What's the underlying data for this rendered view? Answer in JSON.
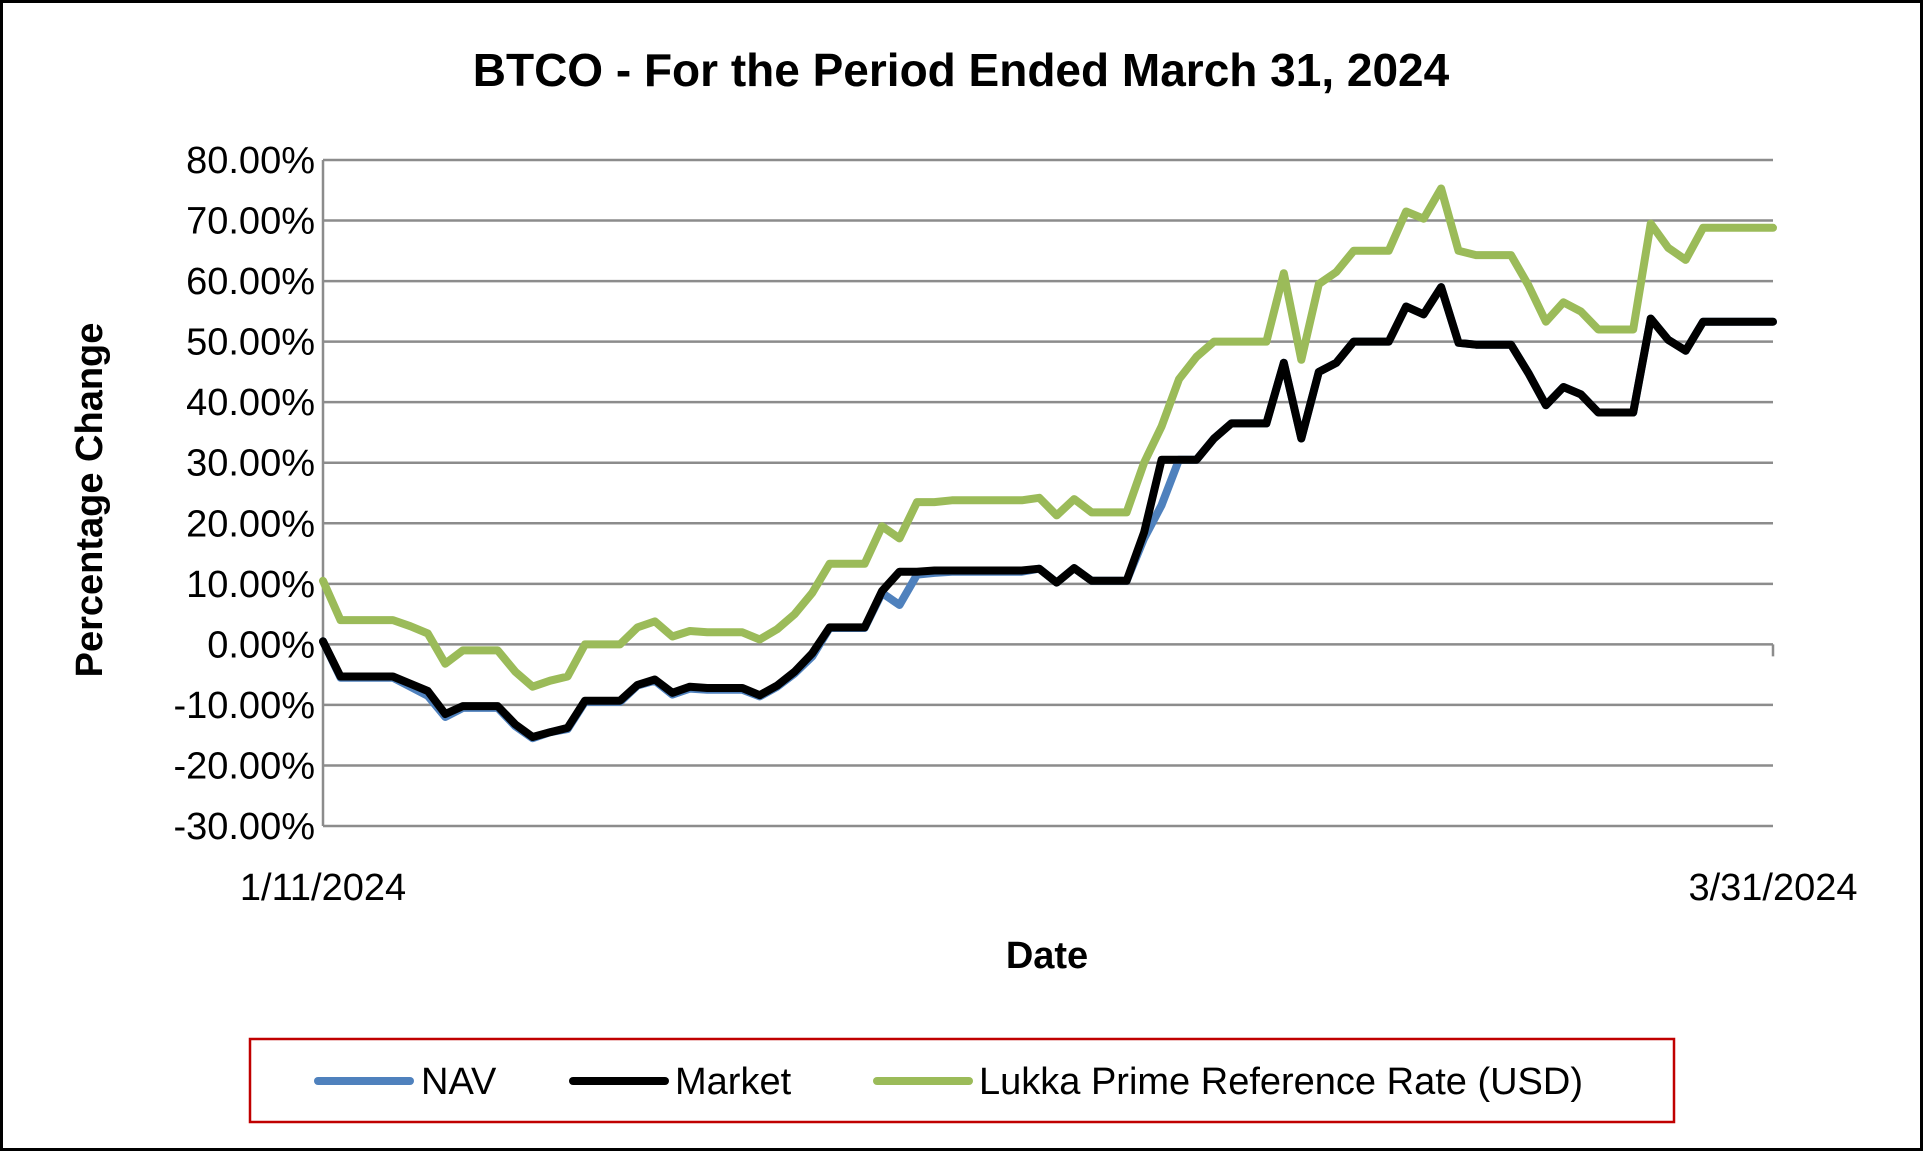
{
  "chart_data": {
    "type": "line",
    "title": "BTCO - For the Period Ended March 31, 2024",
    "xlabel": "Date",
    "ylabel": "Percentage Change",
    "ylim": [
      -30,
      80
    ],
    "yticks": [
      -30,
      -20,
      -10,
      0,
      10,
      20,
      30,
      40,
      50,
      60,
      70,
      80
    ],
    "ytick_labels": [
      "-30.00%",
      "-20.00%",
      "-10.00%",
      "0.00%",
      "10.00%",
      "20.00%",
      "30.00%",
      "40.00%",
      "50.00%",
      "60.00%",
      "70.00%",
      "80.00%"
    ],
    "x_tick_labels": [
      "1/11/2024",
      "3/31/2024"
    ],
    "grid": true,
    "legend_position": "bottom",
    "series": [
      {
        "name": "NAV",
        "color": "#4f81bd",
        "values": [
          0.5,
          -5.5,
          -5.5,
          -5.5,
          -5.5,
          -7,
          -8.5,
          -12,
          -10.5,
          -10.5,
          -10.5,
          -13.5,
          -15.5,
          -14.5,
          -14,
          -9.5,
          -9.5,
          -9.5,
          -6.8,
          -6,
          -8.3,
          -7.3,
          -7.5,
          -7.5,
          -7.5,
          -8.6,
          -7,
          -4.8,
          -2,
          2.7,
          2.7,
          2.7,
          8.5,
          6.5,
          11.5,
          11.8,
          12,
          12,
          12,
          12,
          12,
          12.5,
          10.2,
          12.6,
          10.5,
          10.5,
          10.5,
          17.5,
          23,
          30.5,
          30.5,
          34,
          36.5,
          36.5,
          36.5,
          46.5,
          34,
          45,
          46.5,
          50,
          50,
          50,
          55.8,
          54.5,
          59,
          49.8,
          49.5,
          49.5,
          49.5,
          44.8,
          39.5,
          42.5,
          41.3,
          38.3,
          38.3,
          38.3,
          53.8,
          50.3,
          48.5,
          53.3,
          53.3,
          53.3,
          53.3,
          53.3
        ]
      },
      {
        "name": "Market",
        "color": "#000000",
        "values": [
          0.5,
          -5.3,
          -5.3,
          -5.3,
          -5.3,
          -6.5,
          -7.7,
          -11.5,
          -10.2,
          -10.2,
          -10.2,
          -13.2,
          -15.3,
          -14.5,
          -13.8,
          -9.3,
          -9.3,
          -9.3,
          -6.7,
          -5.8,
          -8,
          -7,
          -7.2,
          -7.2,
          -7.2,
          -8.4,
          -6.8,
          -4.5,
          -1.5,
          2.8,
          2.8,
          2.8,
          8.8,
          12,
          12,
          12.2,
          12.2,
          12.2,
          12.2,
          12.2,
          12.2,
          12.5,
          10.2,
          12.6,
          10.5,
          10.5,
          10.5,
          18.5,
          30.5,
          30.5,
          30.5,
          34,
          36.5,
          36.5,
          36.5,
          46.5,
          34,
          45,
          46.5,
          50,
          50,
          50,
          55.8,
          54.5,
          59,
          49.8,
          49.5,
          49.5,
          49.5,
          44.8,
          39.5,
          42.5,
          41.3,
          38.3,
          38.3,
          38.3,
          53.8,
          50.3,
          48.5,
          53.3,
          53.3,
          53.3,
          53.3,
          53.3
        ]
      },
      {
        "name": "Lukka Prime Reference Rate (USD)",
        "color": "#9bbb59",
        "values": [
          10.5,
          4,
          4,
          4,
          4,
          3,
          1.8,
          -3.2,
          -1,
          -1,
          -1,
          -4.5,
          -7,
          -6,
          -5.3,
          0,
          0,
          0,
          2.8,
          3.8,
          1.3,
          2.2,
          2,
          2,
          2,
          0.8,
          2.5,
          5,
          8.5,
          13.3,
          13.3,
          13.3,
          19.5,
          17.5,
          23.5,
          23.5,
          23.8,
          23.8,
          23.8,
          23.8,
          23.8,
          24.2,
          21.3,
          24,
          21.8,
          21.8,
          21.8,
          30,
          36,
          43.8,
          47.5,
          50,
          50,
          50,
          50,
          61.3,
          47,
          59.5,
          61.5,
          65,
          65,
          65,
          71.5,
          70.3,
          75.3,
          65,
          64.3,
          64.3,
          64.3,
          59.3,
          53.3,
          56.5,
          55,
          52,
          52,
          52,
          69.5,
          65.5,
          63.5,
          68.8,
          68.8,
          68.8,
          68.8,
          68.8
        ]
      }
    ]
  }
}
